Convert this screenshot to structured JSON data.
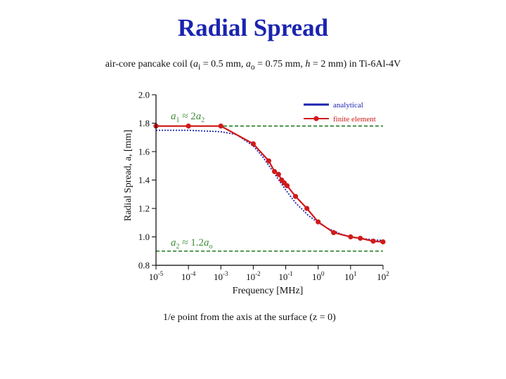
{
  "title": "Radial Spread",
  "subtitle_parts": {
    "prefix": "air-core pancake coil (",
    "a": "a",
    "sub_i": "i",
    "mid1": " = 0.5 mm, ",
    "sub_o": "o",
    "mid2": " = 0.75 mm, ",
    "h": "h",
    "suffix": " = 2 mm)  in Ti-6Al-4V"
  },
  "caption": "1/e point from the axis at the surface    (z = 0)",
  "colors": {
    "title": "#1a24b0",
    "analytical": "#1a24b0",
    "fem": "#d11a1a",
    "reference": "#1f7a1f",
    "annotation": "#3d8b3d"
  },
  "chart_data": {
    "type": "line",
    "title": "",
    "xlabel": "Frequency [MHz]",
    "ylabel": "Radial Spread,  a,  [mm]",
    "xscale": "log",
    "xlim": [
      1e-05,
      100
    ],
    "ylim": [
      0.8,
      2.0
    ],
    "x_ticks": [
      {
        "value": 1e-05,
        "base": "10",
        "exp": "-5"
      },
      {
        "value": 0.0001,
        "base": "10",
        "exp": "-4"
      },
      {
        "value": 0.001,
        "base": "10",
        "exp": "-3"
      },
      {
        "value": 0.01,
        "base": "10",
        "exp": "-2"
      },
      {
        "value": 0.1,
        "base": "10",
        "exp": "-1"
      },
      {
        "value": 1,
        "base": "10",
        "exp": "0"
      },
      {
        "value": 10,
        "base": "10",
        "exp": "1"
      },
      {
        "value": 100,
        "base": "10",
        "exp": "2"
      }
    ],
    "y_ticks": [
      {
        "value": 0.8,
        "label": "0.8"
      },
      {
        "value": 1.0,
        "label": "1.0"
      },
      {
        "value": 1.2,
        "label": "1.2"
      },
      {
        "value": 1.4,
        "label": "1.4"
      },
      {
        "value": 1.6,
        "label": "1.6"
      },
      {
        "value": 1.8,
        "label": "1.8"
      },
      {
        "value": 2.0,
        "label": "2.0"
      }
    ],
    "legend": {
      "position": "top-right"
    },
    "series": [
      {
        "name": "analytical",
        "style": "dotted",
        "x": [
          1e-05,
          0.0001,
          0.001,
          0.003,
          0.01,
          0.02,
          0.05,
          0.1,
          0.2,
          0.5,
          1,
          2,
          5,
          10,
          20,
          50,
          100
        ],
        "y": [
          1.75,
          1.75,
          1.74,
          1.72,
          1.64,
          1.56,
          1.43,
          1.33,
          1.24,
          1.15,
          1.1,
          1.06,
          1.02,
          1.0,
          0.99,
          0.98,
          0.975
        ]
      },
      {
        "name": "finite element",
        "style": "solid-markers",
        "x": [
          1e-05,
          0.0001,
          0.001,
          0.01,
          0.03,
          0.045,
          0.06,
          0.075,
          0.09,
          0.11,
          0.2,
          0.45,
          1,
          3,
          10,
          20,
          50,
          100
        ],
        "y": [
          1.78,
          1.78,
          1.78,
          1.655,
          1.535,
          1.46,
          1.44,
          1.4,
          1.38,
          1.36,
          1.285,
          1.2,
          1.105,
          1.03,
          1.0,
          0.99,
          0.97,
          0.965
        ]
      }
    ],
    "reference_lines": [
      {
        "y": 1.78,
        "label_parts": [
          "a",
          "1",
          " ≈ 2",
          "a",
          "2"
        ]
      },
      {
        "y": 0.9,
        "label_parts": [
          "a",
          "2",
          " ≈ 1.2",
          "a",
          "o"
        ]
      }
    ]
  }
}
